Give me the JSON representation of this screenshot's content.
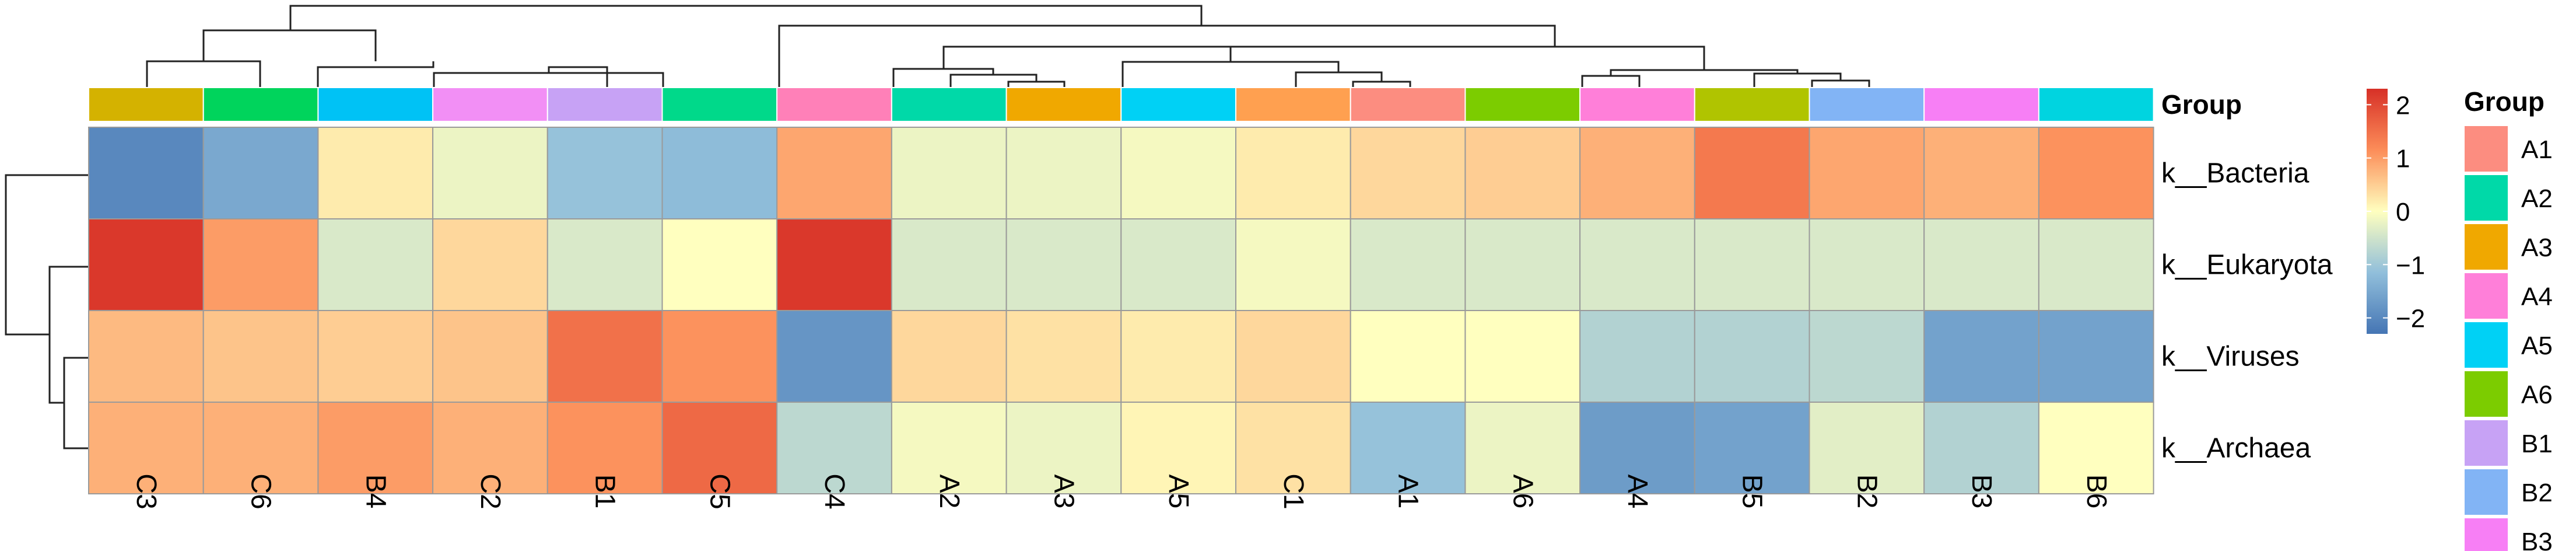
{
  "chart_data": {
    "type": "heatmap",
    "columns": [
      "C3",
      "C6",
      "B4",
      "C2",
      "B1",
      "C5",
      "C4",
      "A2",
      "A3",
      "A5",
      "C1",
      "A1",
      "A6",
      "A4",
      "B5",
      "B2",
      "B3",
      "B6"
    ],
    "rows": [
      "k__Bacteria",
      "k__Eukaryota",
      "k__Viruses",
      "k__Archaea"
    ],
    "values": [
      [
        -2.0,
        -1.5,
        0.2,
        -0.2,
        -1.1,
        -1.2,
        0.9,
        -0.2,
        -0.2,
        -0.1,
        0.2,
        0.4,
        0.5,
        0.8,
        1.4,
        0.9,
        0.8,
        1.1
      ],
      [
        2.2,
        1.0,
        -0.4,
        0.4,
        -0.4,
        0.0,
        2.2,
        -0.4,
        -0.4,
        -0.4,
        -0.1,
        -0.4,
        -0.4,
        -0.4,
        -0.4,
        -0.4,
        -0.4,
        -0.4
      ],
      [
        0.7,
        0.6,
        0.5,
        0.6,
        1.5,
        1.1,
        -1.8,
        0.4,
        0.3,
        0.2,
        0.4,
        0.0,
        0.0,
        -0.8,
        -0.8,
        -0.7,
        -1.6,
        -1.6
      ],
      [
        0.8,
        0.8,
        1.0,
        0.8,
        1.1,
        1.6,
        -0.7,
        -0.1,
        -0.2,
        0.1,
        0.3,
        -1.1,
        -0.2,
        -1.7,
        -1.6,
        -0.3,
        -0.8,
        0.0
      ]
    ],
    "group_title": "Group",
    "group_legend_title": "Group",
    "color_scale": {
      "ticks": [
        "2",
        "1",
        "0",
        "−1",
        "−2"
      ],
      "range": [
        -2.3,
        2.3
      ],
      "stops": [
        {
          "value": -2.3,
          "color": "#4575b4"
        },
        {
          "value": -1.15,
          "color": "#91bfdb"
        },
        {
          "value": 0,
          "color": "#ffffbf"
        },
        {
          "value": 1.15,
          "color": "#fc8d59"
        },
        {
          "value": 2.3,
          "color": "#d73027"
        }
      ]
    },
    "groups": [
      {
        "name": "A1",
        "color": "#fc8d80"
      },
      {
        "name": "A2",
        "color": "#00d9a8"
      },
      {
        "name": "A3",
        "color": "#f0a800"
      },
      {
        "name": "A4",
        "color": "#ff7fd9"
      },
      {
        "name": "A5",
        "color": "#00d1f5"
      },
      {
        "name": "A6",
        "color": "#7ccc00"
      },
      {
        "name": "B1",
        "color": "#c7a2f5"
      },
      {
        "name": "B2",
        "color": "#82b4f5"
      },
      {
        "name": "B3",
        "color": "#f77ff5"
      },
      {
        "name": "B4",
        "color": "#00c2f5"
      },
      {
        "name": "B5",
        "color": "#b0c400"
      },
      {
        "name": "B6",
        "color": "#00d4e0"
      },
      {
        "name": "C1",
        "color": "#ffa050"
      },
      {
        "name": "C2",
        "color": "#f28ff5"
      },
      {
        "name": "C3",
        "color": "#d4b200"
      },
      {
        "name": "C4",
        "color": "#ff80b8"
      },
      {
        "name": "C5",
        "color": "#00d98a"
      },
      {
        "name": "C6",
        "color": "#00d45c"
      }
    ],
    "legend_visible_count": 9
  }
}
